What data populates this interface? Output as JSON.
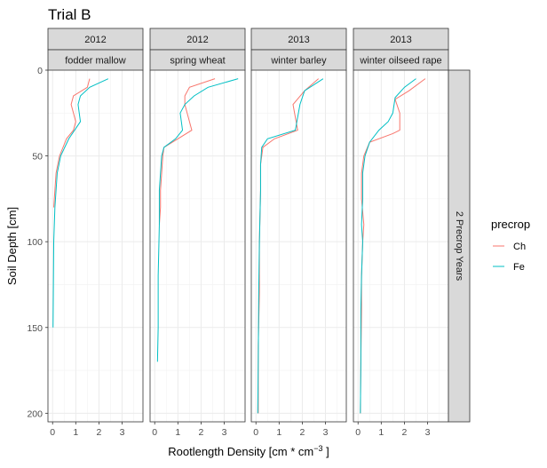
{
  "chart_data": {
    "type": "line",
    "title": "Trial B",
    "xlabel_text": "Rootlength Density [cm * cm",
    "xlabel_sup": "−3",
    "xlabel_end": " ]",
    "ylabel": "Soil Depth [cm]",
    "xlim": [
      -0.2,
      3.9
    ],
    "ylim": [
      0,
      205
    ],
    "y_reversed": true,
    "x_ticks": [
      "0",
      "1",
      "2",
      "3"
    ],
    "y_ticks": [
      "0",
      "50",
      "100",
      "150",
      "200"
    ],
    "grid": true,
    "legend": {
      "title": "precrop",
      "position": "right",
      "entries": [
        {
          "name": "Ch",
          "color": "#F8766D"
        },
        {
          "name": "Fe",
          "color": "#00BFC4"
        }
      ]
    },
    "row_strip": "2 Precrop Years",
    "panels": [
      {
        "year": "2012",
        "crop": "fodder mallow",
        "series": [
          {
            "name": "Ch",
            "color": "#F8766D",
            "points": [
              [
                1.6,
                5
              ],
              [
                1.5,
                10
              ],
              [
                0.9,
                15
              ],
              [
                0.8,
                20
              ],
              [
                1.0,
                30
              ],
              [
                0.9,
                35
              ],
              [
                0.6,
                40
              ],
              [
                0.3,
                50
              ],
              [
                0.15,
                60
              ],
              [
                0.1,
                70
              ],
              [
                0.05,
                80
              ]
            ]
          },
          {
            "name": "Fe",
            "color": "#00BFC4",
            "points": [
              [
                2.4,
                5
              ],
              [
                1.6,
                10
              ],
              [
                1.2,
                15
              ],
              [
                1.1,
                20
              ],
              [
                1.2,
                30
              ],
              [
                0.7,
                40
              ],
              [
                0.35,
                50
              ],
              [
                0.2,
                60
              ],
              [
                0.15,
                70
              ],
              [
                0.1,
                80
              ],
              [
                0.05,
                100
              ],
              [
                0.02,
                150
              ]
            ]
          }
        ]
      },
      {
        "year": "2012",
        "crop": "spring wheat",
        "series": [
          {
            "name": "Ch",
            "color": "#F8766D",
            "points": [
              [
                2.6,
                5
              ],
              [
                1.5,
                10
              ],
              [
                1.3,
                15
              ],
              [
                1.3,
                20
              ],
              [
                1.4,
                25
              ],
              [
                1.6,
                35
              ],
              [
                1.0,
                40
              ],
              [
                0.4,
                45
              ],
              [
                0.35,
                50
              ],
              [
                0.3,
                60
              ],
              [
                0.25,
                70
              ],
              [
                0.25,
                80
              ],
              [
                0.2,
                90
              ]
            ]
          },
          {
            "name": "Fe",
            "color": "#00BFC4",
            "points": [
              [
                3.6,
                5
              ],
              [
                2.3,
                10
              ],
              [
                1.7,
                15
              ],
              [
                1.3,
                20
              ],
              [
                1.1,
                25
              ],
              [
                1.2,
                35
              ],
              [
                0.9,
                40
              ],
              [
                0.4,
                45
              ],
              [
                0.3,
                50
              ],
              [
                0.25,
                60
              ],
              [
                0.2,
                70
              ],
              [
                0.2,
                80
              ],
              [
                0.2,
                90
              ],
              [
                0.15,
                120
              ],
              [
                0.15,
                150
              ],
              [
                0.12,
                170
              ]
            ]
          }
        ]
      },
      {
        "year": "2013",
        "crop": "winter barley",
        "series": [
          {
            "name": "Ch",
            "color": "#F8766D",
            "points": [
              [
                2.7,
                5
              ],
              [
                2.1,
                12
              ],
              [
                1.6,
                20
              ],
              [
                1.8,
                35
              ],
              [
                0.8,
                40
              ],
              [
                0.3,
                45
              ],
              [
                0.2,
                55
              ],
              [
                0.2,
                70
              ],
              [
                0.15,
                100
              ],
              [
                0.15,
                130
              ],
              [
                0.1,
                160
              ],
              [
                0.1,
                200
              ]
            ]
          },
          {
            "name": "Fe",
            "color": "#00BFC4",
            "points": [
              [
                2.9,
                5
              ],
              [
                2.1,
                12
              ],
              [
                1.9,
                20
              ],
              [
                1.7,
                35
              ],
              [
                0.5,
                40
              ],
              [
                0.25,
                45
              ],
              [
                0.2,
                55
              ],
              [
                0.2,
                70
              ],
              [
                0.15,
                100
              ],
              [
                0.12,
                130
              ],
              [
                0.1,
                170
              ],
              [
                0.08,
                200
              ]
            ]
          }
        ]
      },
      {
        "year": "2013",
        "crop": "winter oilseed rape",
        "series": [
          {
            "name": "Ch",
            "color": "#F8766D",
            "points": [
              [
                2.9,
                5
              ],
              [
                2.2,
                12
              ],
              [
                1.6,
                17
              ],
              [
                1.8,
                25
              ],
              [
                1.8,
                35
              ],
              [
                1.5,
                37
              ],
              [
                0.5,
                42
              ],
              [
                0.25,
                50
              ],
              [
                0.15,
                60
              ],
              [
                0.15,
                75
              ],
              [
                0.25,
                90
              ],
              [
                0.2,
                100
              ],
              [
                0.15,
                120
              ],
              [
                0.15,
                140
              ],
              [
                0.12,
                170
              ],
              [
                0.1,
                200
              ]
            ]
          },
          {
            "name": "Fe",
            "color": "#00BFC4",
            "points": [
              [
                2.5,
                5
              ],
              [
                2.0,
                10
              ],
              [
                1.6,
                16
              ],
              [
                1.5,
                25
              ],
              [
                1.3,
                30
              ],
              [
                0.9,
                35
              ],
              [
                0.5,
                42
              ],
              [
                0.3,
                50
              ],
              [
                0.2,
                60
              ],
              [
                0.2,
                75
              ],
              [
                0.15,
                90
              ],
              [
                0.2,
                100
              ],
              [
                0.15,
                120
              ],
              [
                0.12,
                140
              ],
              [
                0.12,
                170
              ],
              [
                0.1,
                200
              ]
            ]
          }
        ]
      }
    ]
  }
}
